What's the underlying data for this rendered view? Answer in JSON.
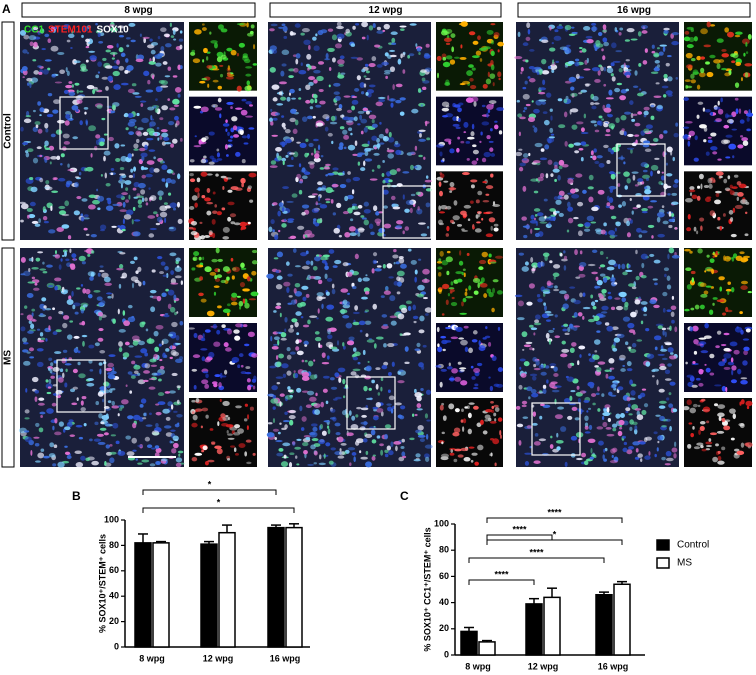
{
  "panel_a": {
    "label": "A",
    "columns": [
      "8 wpg",
      "12 wpg",
      "16 wpg"
    ],
    "rows": [
      "Control",
      "MS"
    ],
    "stain_labels": [
      "CC1",
      "STEM101",
      "SOX10"
    ]
  },
  "chart_data": [
    {
      "type": "bar",
      "panel_label": "B",
      "y_label": "% SOX10⁺/STEM⁺ cells",
      "categories": [
        "8 wpg",
        "12 wpg",
        "16 wpg"
      ],
      "series": [
        {
          "name": "Control",
          "color": "#000000",
          "values": [
            82,
            81,
            94
          ],
          "errors": [
            7,
            2,
            2
          ]
        },
        {
          "name": "MS",
          "color": "#ffffff",
          "values": [
            82,
            90,
            94
          ],
          "errors": [
            1,
            6,
            3
          ]
        }
      ],
      "ylim": [
        0,
        100
      ],
      "yticks": [
        0,
        20,
        40,
        60,
        80,
        100
      ],
      "annotations": [
        "*",
        "*"
      ]
    },
    {
      "type": "bar",
      "panel_label": "C",
      "y_label": "% SOX10⁺ CC1⁺/STEM⁺ cells",
      "categories": [
        "8 wpg",
        "12 wpg",
        "16 wpg"
      ],
      "series": [
        {
          "name": "Control",
          "color": "#000000",
          "values": [
            18,
            39,
            46
          ],
          "errors": [
            3,
            4,
            2
          ]
        },
        {
          "name": "MS",
          "color": "#ffffff",
          "values": [
            10,
            44,
            54
          ],
          "errors": [
            1,
            7,
            2
          ]
        }
      ],
      "ylim": [
        0,
        100
      ],
      "yticks": [
        0,
        20,
        40,
        60,
        80,
        100
      ],
      "legend": "right",
      "annotations": [
        "****",
        "****",
        "*",
        "****",
        "****"
      ]
    }
  ]
}
